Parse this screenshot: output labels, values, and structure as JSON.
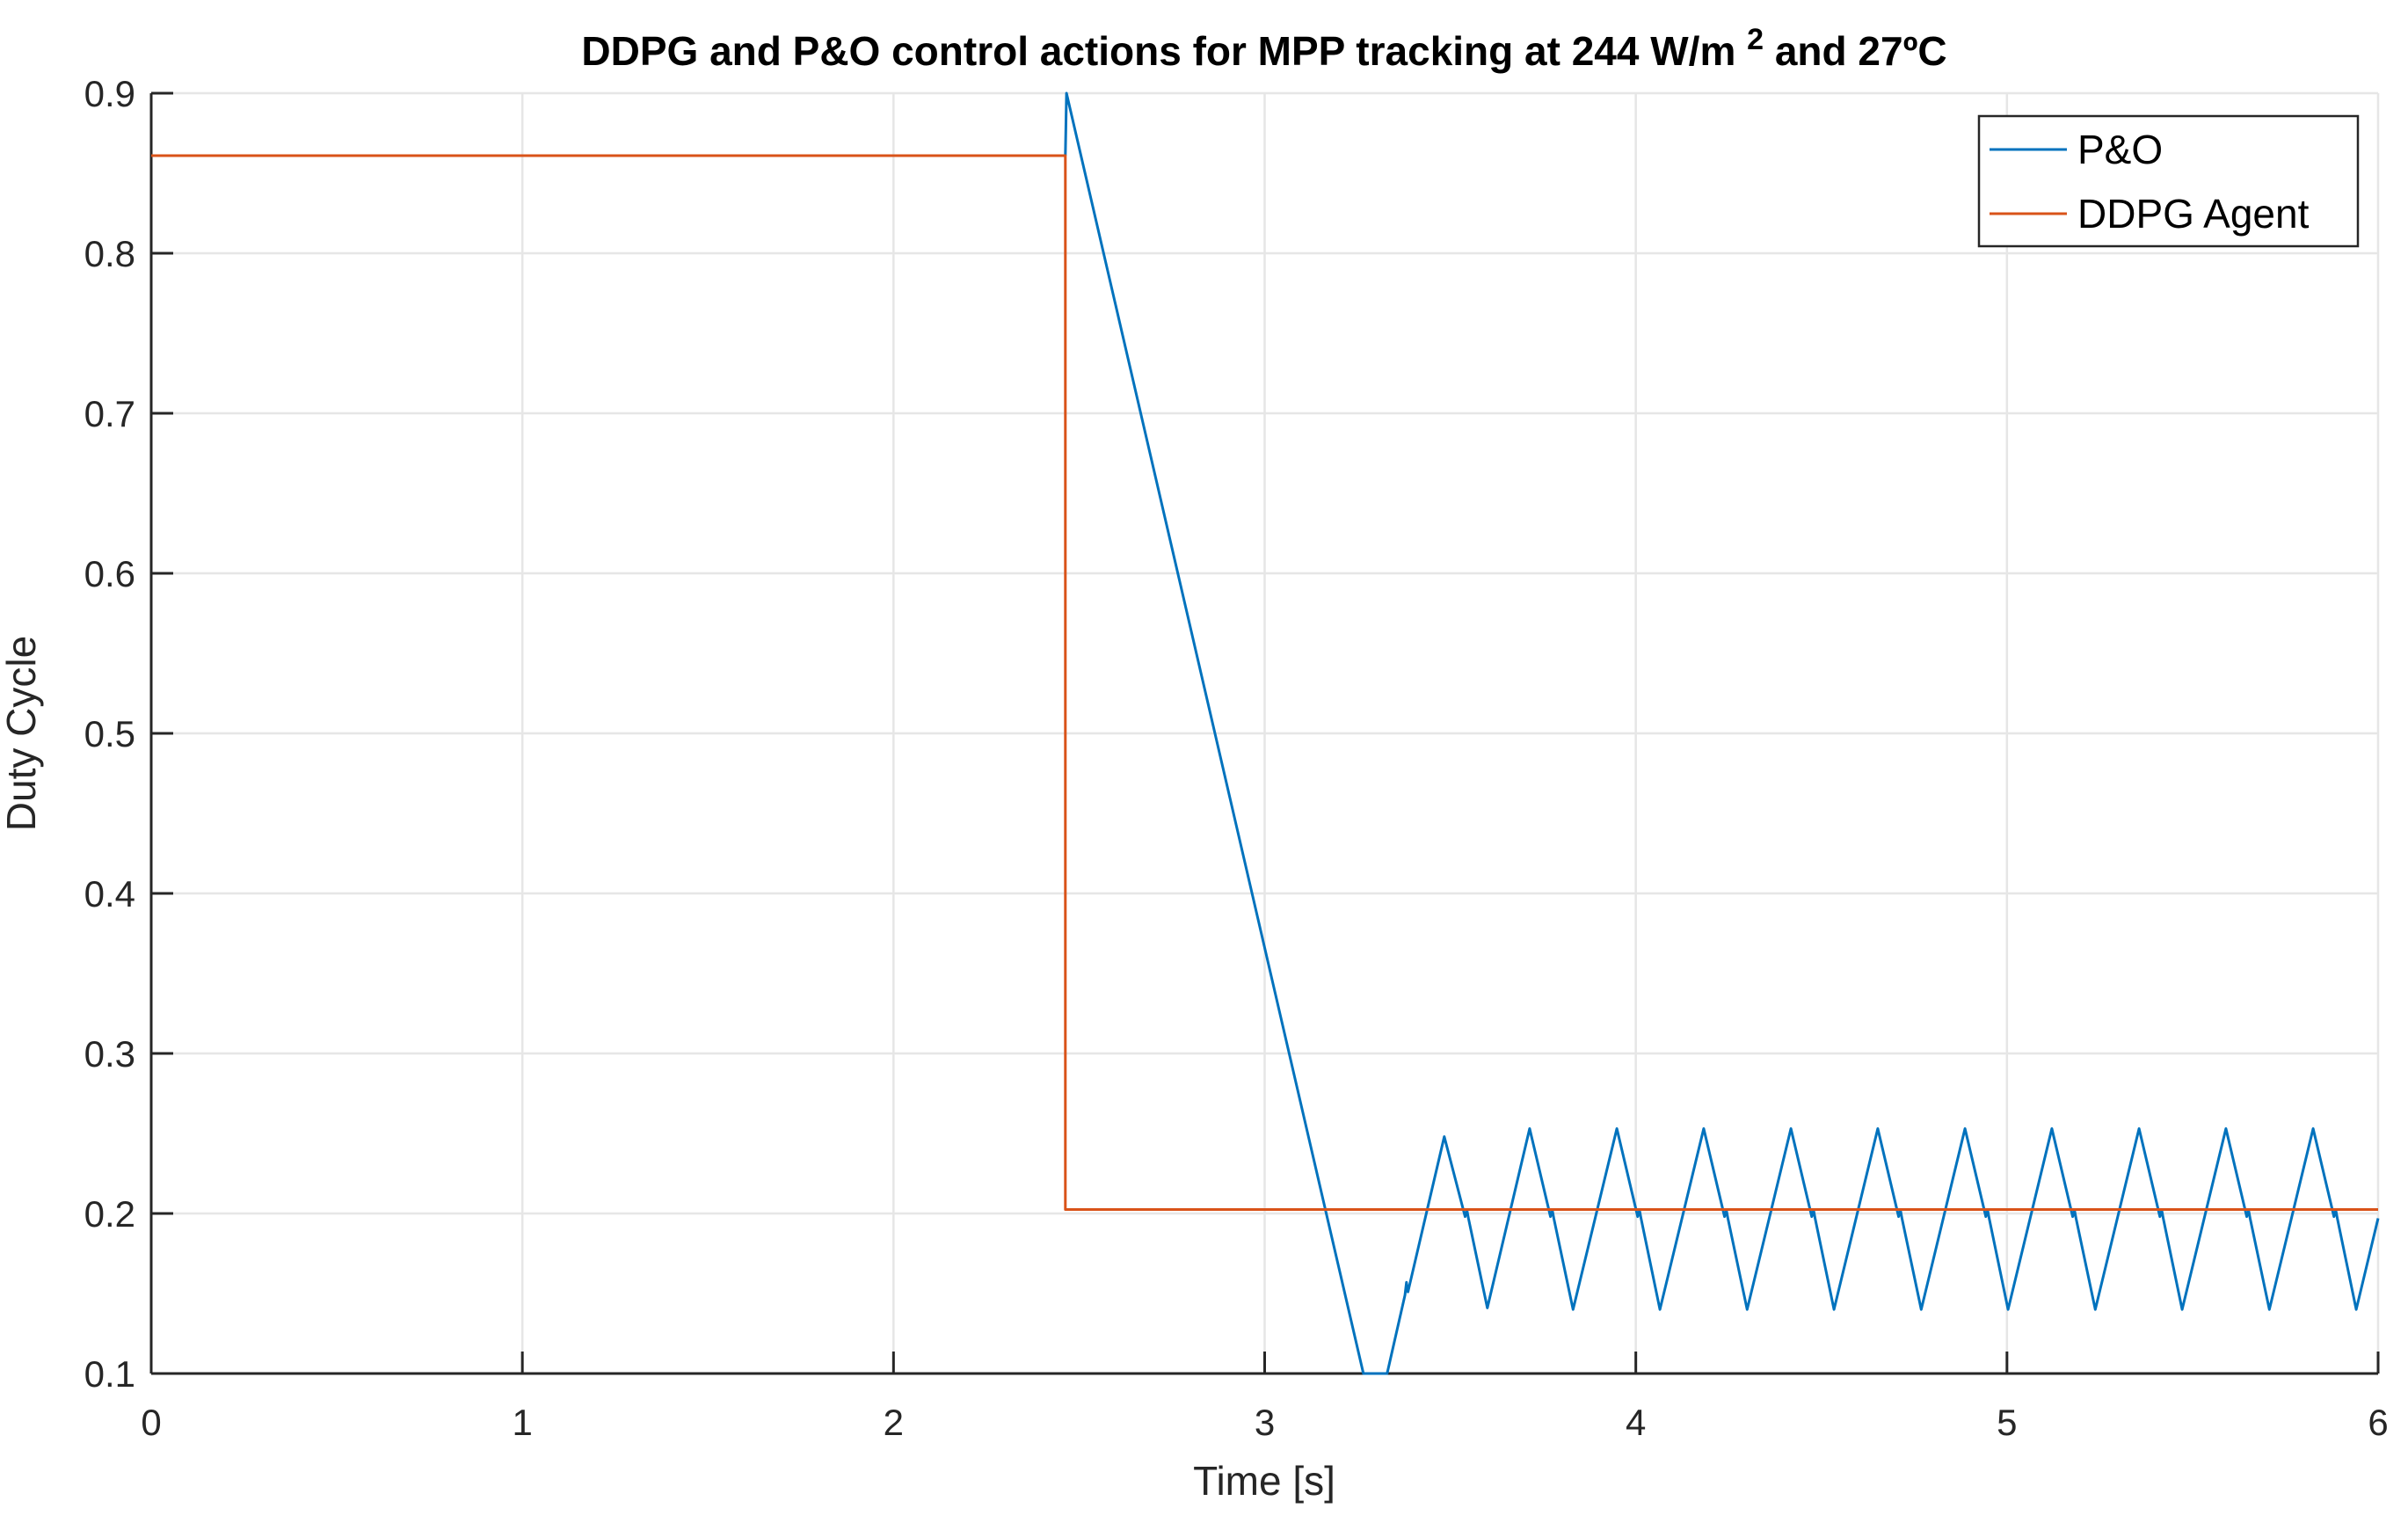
{
  "title": {
    "prefix": "DDPG and P&O control actions for MPP tracking at 244 W/m",
    "superscript": "2",
    "suffix": " and 27ºC"
  },
  "axes": {
    "xlabel": "Time [s]",
    "ylabel": "Duty Cycle",
    "xlim": [
      0,
      6
    ],
    "ylim": [
      0.1,
      0.9
    ],
    "x_ticks": [
      0,
      1,
      2,
      3,
      4,
      5,
      6
    ],
    "x_tick_labels": [
      "0",
      "1",
      "2",
      "3",
      "4",
      "5",
      "6"
    ],
    "y_ticks": [
      0.1,
      0.2,
      0.3,
      0.4,
      0.5,
      0.6,
      0.7,
      0.8,
      0.9
    ],
    "y_tick_labels": [
      "0.1",
      "0.2",
      "0.3",
      "0.4",
      "0.5",
      "0.6",
      "0.7",
      "0.8",
      "0.9"
    ],
    "grid": true
  },
  "legend": {
    "position": "northeast",
    "entries": [
      {
        "label": "P&O",
        "color": "#0072BD"
      },
      {
        "label": "DDPG Agent",
        "color": "#D95319"
      }
    ]
  },
  "colors": {
    "pno_line": "#0072BD",
    "ddpg_line": "#D95319",
    "axis": "#262626",
    "grid": "#E6E6E6",
    "title_text": "#000000",
    "background": "#FFFFFF",
    "legend_border": "#262626"
  },
  "chart_data": {
    "type": "line",
    "title": "DDPG and P&O control actions for MPP tracking at 244 W/m2 and 27ºC",
    "xlabel": "Time [s]",
    "ylabel": "Duty Cycle",
    "xlim": [
      0,
      6
    ],
    "ylim": [
      0.1,
      0.9
    ],
    "grid": true,
    "legend_position": "northeast",
    "series": [
      {
        "name": "P&O",
        "color": "#0072BD",
        "points": [
          [
            2.463,
            0.861
          ],
          [
            2.466,
            0.9
          ],
          [
            3.266,
            0.1
          ],
          [
            3.33,
            0.1
          ],
          [
            3.378,
            0.149
          ],
          [
            3.382,
            0.157
          ],
          [
            3.386,
            0.151
          ],
          [
            3.484,
            0.248
          ],
          [
            3.54,
            0.198
          ],
          [
            3.545,
            0.202
          ],
          [
            3.549,
            0.197
          ],
          [
            3.6,
            0.141
          ],
          [
            3.714,
            0.253
          ],
          [
            3.77,
            0.198
          ],
          [
            3.775,
            0.202
          ],
          [
            3.779,
            0.197
          ],
          [
            3.831,
            0.14
          ],
          [
            3.949,
            0.253
          ],
          [
            4.005,
            0.198
          ],
          [
            4.01,
            0.202
          ],
          [
            4.014,
            0.197
          ],
          [
            4.065,
            0.14
          ],
          [
            4.183,
            0.253
          ],
          [
            4.239,
            0.198
          ],
          [
            4.244,
            0.202
          ],
          [
            4.248,
            0.197
          ],
          [
            4.3,
            0.14
          ],
          [
            4.418,
            0.253
          ],
          [
            4.474,
            0.198
          ],
          [
            4.479,
            0.202
          ],
          [
            4.483,
            0.197
          ],
          [
            4.534,
            0.14
          ],
          [
            4.652,
            0.253
          ],
          [
            4.708,
            0.198
          ],
          [
            4.713,
            0.202
          ],
          [
            4.717,
            0.197
          ],
          [
            4.769,
            0.14
          ],
          [
            4.887,
            0.253
          ],
          [
            4.943,
            0.198
          ],
          [
            4.948,
            0.202
          ],
          [
            4.952,
            0.197
          ],
          [
            5.003,
            0.14
          ],
          [
            5.121,
            0.253
          ],
          [
            5.177,
            0.198
          ],
          [
            5.182,
            0.202
          ],
          [
            5.186,
            0.197
          ],
          [
            5.238,
            0.14
          ],
          [
            5.356,
            0.253
          ],
          [
            5.412,
            0.198
          ],
          [
            5.417,
            0.202
          ],
          [
            5.421,
            0.197
          ],
          [
            5.472,
            0.14
          ],
          [
            5.59,
            0.253
          ],
          [
            5.646,
            0.198
          ],
          [
            5.651,
            0.202
          ],
          [
            5.655,
            0.197
          ],
          [
            5.707,
            0.14
          ],
          [
            5.825,
            0.253
          ],
          [
            5.881,
            0.198
          ],
          [
            5.886,
            0.202
          ],
          [
            5.89,
            0.197
          ],
          [
            5.941,
            0.14
          ],
          [
            6.0,
            0.197
          ]
        ]
      },
      {
        "name": "DDPG Agent",
        "color": "#D95319",
        "points": [
          [
            0.0,
            0.861
          ],
          [
            2.463,
            0.861
          ],
          [
            2.463,
            0.2025
          ],
          [
            6.0,
            0.2025
          ]
        ]
      }
    ]
  }
}
